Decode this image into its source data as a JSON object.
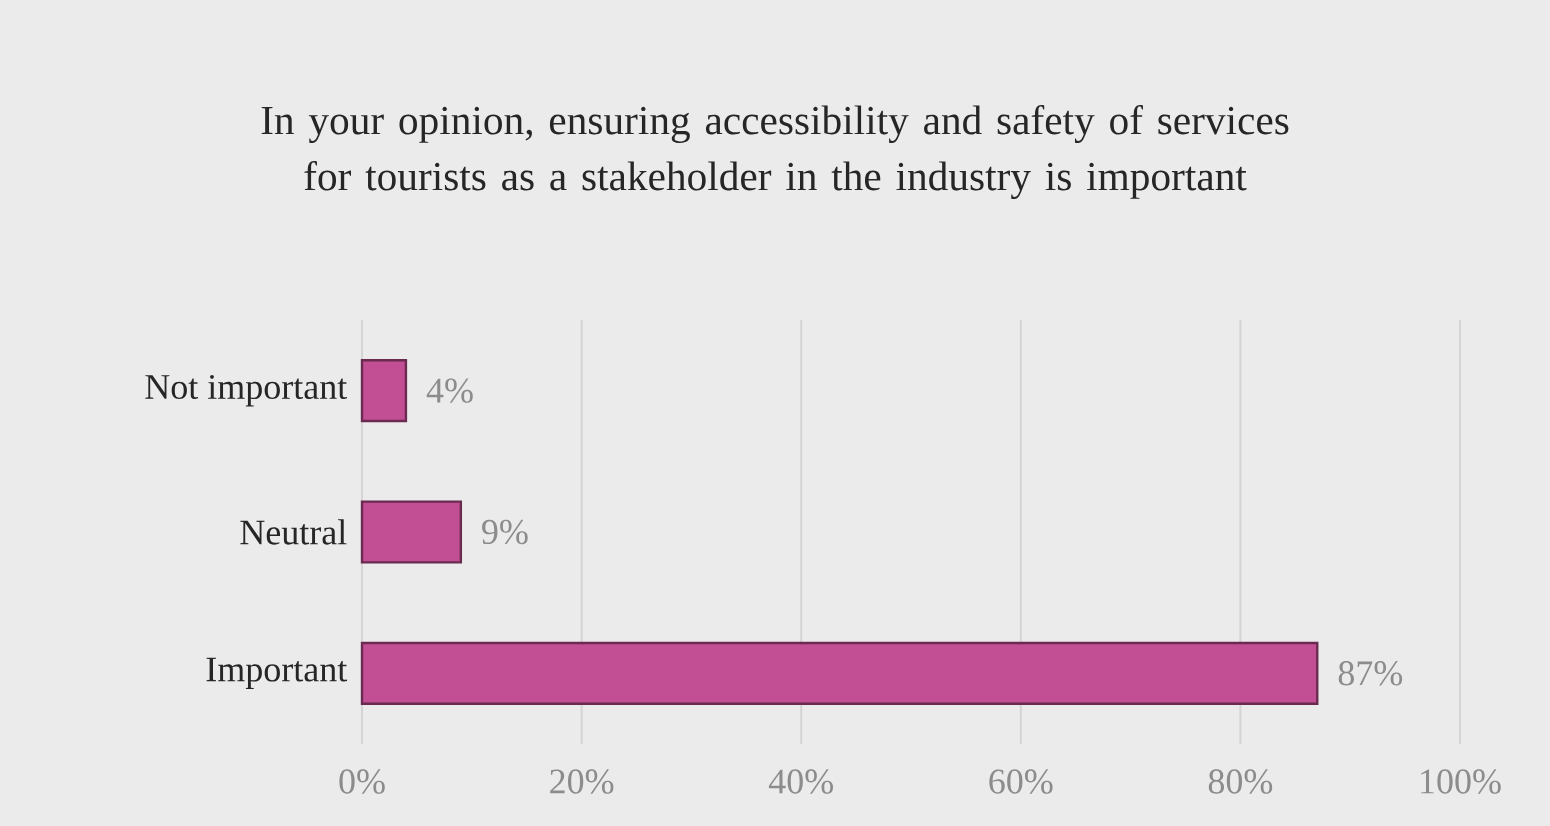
{
  "chart_data": {
    "type": "bar",
    "orientation": "horizontal",
    "title": "In your opinion, ensuring accessibility and safety of services for tourists as a stakeholder in the industry is important",
    "categories": [
      "Not important",
      "Neutral",
      "Important"
    ],
    "values": [
      4,
      9,
      87
    ],
    "value_labels": [
      "4%",
      "9%",
      "87%"
    ],
    "color": "#c24f94",
    "xlim": [
      0,
      100
    ],
    "xticks": [
      {
        "value": 0,
        "label": "0%"
      },
      {
        "value": 20,
        "label": "20%"
      },
      {
        "value": 40,
        "label": "40%"
      },
      {
        "value": 60,
        "label": "60%"
      },
      {
        "value": 80,
        "label": "80%"
      },
      {
        "value": 100,
        "label": "100%"
      }
    ],
    "grid": "x"
  }
}
